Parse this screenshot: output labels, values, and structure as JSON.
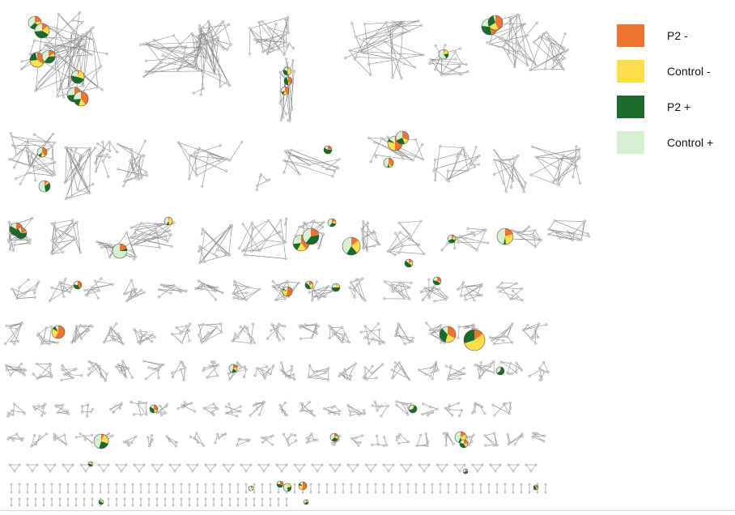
{
  "legend": {
    "items": [
      {
        "label": "P2 -",
        "color": "#ED7330"
      },
      {
        "label": "Control -",
        "color": "#FFE04A"
      },
      {
        "label": "P2 +",
        "color": "#1A6B2A"
      },
      {
        "label": "Control +",
        "color": "#D7F0D2"
      }
    ]
  },
  "node_colors": {
    "default": "#DADADA",
    "outline": "#8A8A8A",
    "edge": "#8C8C8C",
    "edge_label": "#D23A3A"
  }
}
